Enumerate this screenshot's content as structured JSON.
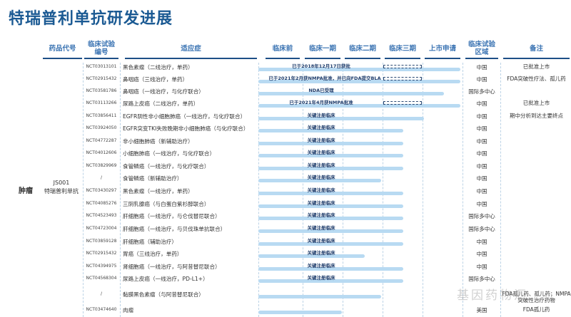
{
  "title": "特瑞普利单抗研发进展",
  "headers": [
    "药品代号",
    "临床试验\n编号",
    "适应症",
    "临床前",
    "临床一期",
    "临床二期",
    "临床三期",
    "上市申请",
    "临床试验\n区域",
    "备注"
  ],
  "side": {
    "category": "肿瘤",
    "drug_code": "JS001",
    "drug_name": "特瑞普利单抗"
  },
  "bar_color": "#b8daf2",
  "stages": [
    "临床前",
    "临床一期",
    "临床二期",
    "临床三期",
    "上市申请"
  ],
  "rows": [
    {
      "nct": "NCT03013101",
      "indication": "黑色素瘤（二线治疗，单药）",
      "progress_stage": 4.95,
      "label": "已于2018年12月17日获批",
      "phase3_dashed": true,
      "region": "中国",
      "note": "已批准上市"
    },
    {
      "nct": "NCT02915432",
      "indication": "鼻咽癌（三线治疗，单药）",
      "progress_stage": 4.95,
      "label": "已于2021年2月获NMPA批准，并已向FDA提交BLA",
      "phase3_dashed": true,
      "region": "中国",
      "note": "FDA突破性疗法、孤儿药"
    },
    {
      "nct": "NCT03581786",
      "indication": "鼻咽癌（一线治疗，与化疗联合）",
      "progress_stage": 4.55,
      "label": "NDA已受理",
      "region": "国际多中心",
      "note": ""
    },
    {
      "nct": "NCT03113266",
      "indication": "尿路上皮癌（二线治疗，单药）",
      "progress_stage": 4.95,
      "label": "已于2021年4月获NMPA批准",
      "phase3_dashed": true,
      "region": "中国",
      "note": "已批准上市"
    },
    {
      "nct": "NCT03856411",
      "indication": "EGFR阴性非小细胞肺癌（一线治疗，与化疗联合）",
      "progress_stage": 4.05,
      "label": "关键注册临床",
      "region": "中国",
      "note": "期中分析到达主要终点"
    },
    {
      "nct": "NCT03924050",
      "indication": "EGFR突变TKI失败晚期非小细胞肺癌（与化疗联合）",
      "progress_stage": 3.55,
      "label": "关键注册临床",
      "region": "中国",
      "note": ""
    },
    {
      "nct": "NCT04772287",
      "indication": "非小细胞肺癌（新辅助治疗）",
      "progress_stage": 3.55,
      "label": "关键注册临床",
      "region": "中国",
      "note": ""
    },
    {
      "nct": "NCT04012606",
      "indication": "小细胞肺癌（一线治疗，与化疗联合）",
      "progress_stage": 3.55,
      "label": "关键注册临床",
      "region": "中国",
      "note": ""
    },
    {
      "nct": "NCT03829969",
      "indication": "食管鳞癌（一线治疗，与化疗联合）",
      "progress_stage": 3.55,
      "label": "关键注册临床",
      "region": "中国",
      "note": ""
    },
    {
      "nct": "/",
      "indication": "食管鳞癌（新辅助治疗）",
      "progress_stage": 3.0,
      "label": "关键注册临床",
      "region": "中国",
      "note": ""
    },
    {
      "nct": "NCT03430297",
      "indication": "黑色素瘤（一线治疗，单药）",
      "progress_stage": 3.55,
      "label": "关键注册临床",
      "region": "中国",
      "note": ""
    },
    {
      "nct": "NCT04085276",
      "indication": "三阴乳腺癌（与白蛋白紫杉醇联合）",
      "progress_stage": 3.55,
      "label": "关键注册临床",
      "region": "中国",
      "note": ""
    },
    {
      "nct": "NCT04523493",
      "indication": "肝细胞癌（一线治疗，与仑伐替尼联合）",
      "progress_stage": 3.55,
      "label": "关键注册临床",
      "region": "国际多中心",
      "note": ""
    },
    {
      "nct": "NCT04723004",
      "indication": "肝细胞癌（一线治疗，与贝伐珠单抗联合）",
      "progress_stage": 3.55,
      "label": "关键注册临床",
      "region": "国际多中心",
      "note": ""
    },
    {
      "nct": "NCT03859128",
      "indication": "肝细胞癌（辅助治疗）",
      "progress_stage": 3.55,
      "label": "关键注册临床",
      "region": "中国",
      "note": ""
    },
    {
      "nct": "NCT02915432",
      "indication": "胃癌（三线治疗，单药）",
      "progress_stage": 2.6,
      "label": "关键注册临床",
      "region": "中国",
      "note": ""
    },
    {
      "nct": "NCT04394975",
      "indication": "肾细胞癌（一线治疗，与阿昔替尼联合）",
      "progress_stage": 3.55,
      "label": "关键注册临床",
      "region": "中国",
      "note": ""
    },
    {
      "nct": "NCT04568304",
      "indication": "尿路上皮癌（一线治疗，PD-L1+）",
      "progress_stage": 3.55,
      "label": "关键注册临床",
      "region": "国际多中心",
      "note": ""
    },
    {
      "nct": "/",
      "indication": "黏膜黑色素瘤（与阿昔替尼联合）",
      "progress_stage": 3.0,
      "label": "",
      "region": "",
      "note": "FDA孤儿药、孤儿药；NMPA突破性治疗药物"
    },
    {
      "nct": "NCT03474640",
      "indication": "肉瘤",
      "progress_stage": 2.05,
      "label": "",
      "region": "美国",
      "note": "FDA孤儿药"
    }
  ],
  "watermark": "基因药物汇"
}
